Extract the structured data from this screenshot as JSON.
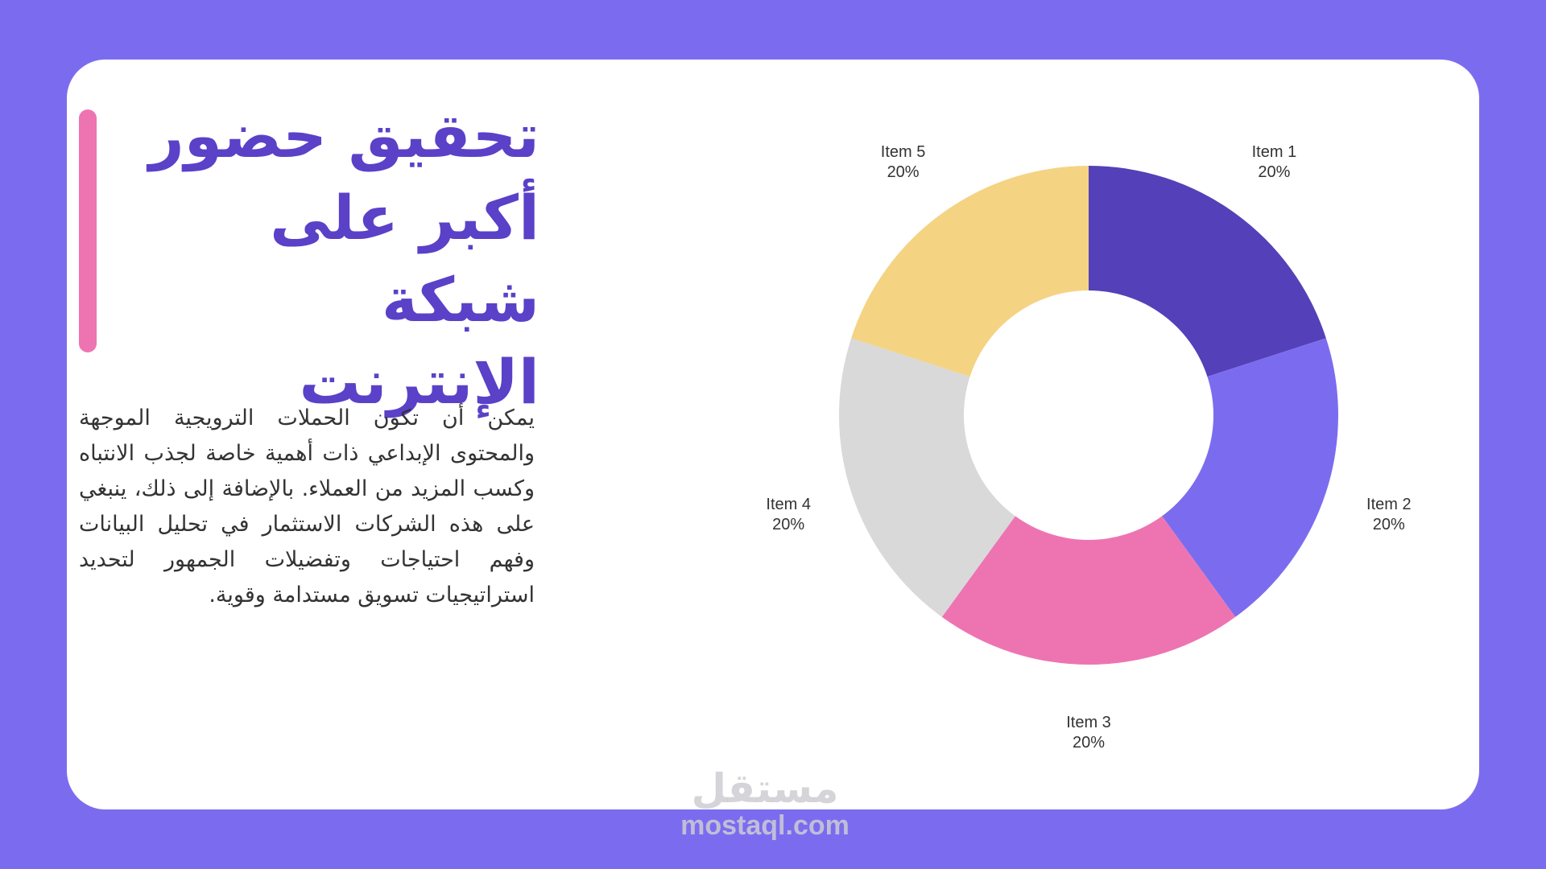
{
  "slide": {
    "title": "تحقيق حضور أكبر على شبكة الإنترنت",
    "body": "يمكن أن تكون الحملات الترويجية الموجهة والمحتوى الإبداعي ذات أهمية خاصة لجذب الانتباه وكسب المزيد من العملاء. بالإضافة إلى ذلك، ينبغي على هذه الشركات الاستثمار في تحليل البيانات وفهم احتياجات وتفضيلات الجمهور لتحديد استراتيجيات تسويق مستدامة وقوية."
  },
  "colors": {
    "background": "#7B6CEF",
    "card": "#FFFFFF",
    "title": "#5A41C8",
    "accent_bar": "#EE74B1"
  },
  "watermark": {
    "arabic": "مستقل",
    "latin": "mostaql.com"
  },
  "chart_data": {
    "type": "pie",
    "donut": true,
    "title": "",
    "legend": "none",
    "categories": [
      "Item 1",
      "Item 2",
      "Item 3",
      "Item 4",
      "Item 5"
    ],
    "values": [
      20,
      20,
      20,
      20,
      20
    ],
    "value_labels": [
      "20%",
      "20%",
      "20%",
      "20%",
      "20%"
    ],
    "colors": [
      "#5440B8",
      "#7B6CEF",
      "#EE74B1",
      "#D9D9D9",
      "#F4D383"
    ]
  }
}
